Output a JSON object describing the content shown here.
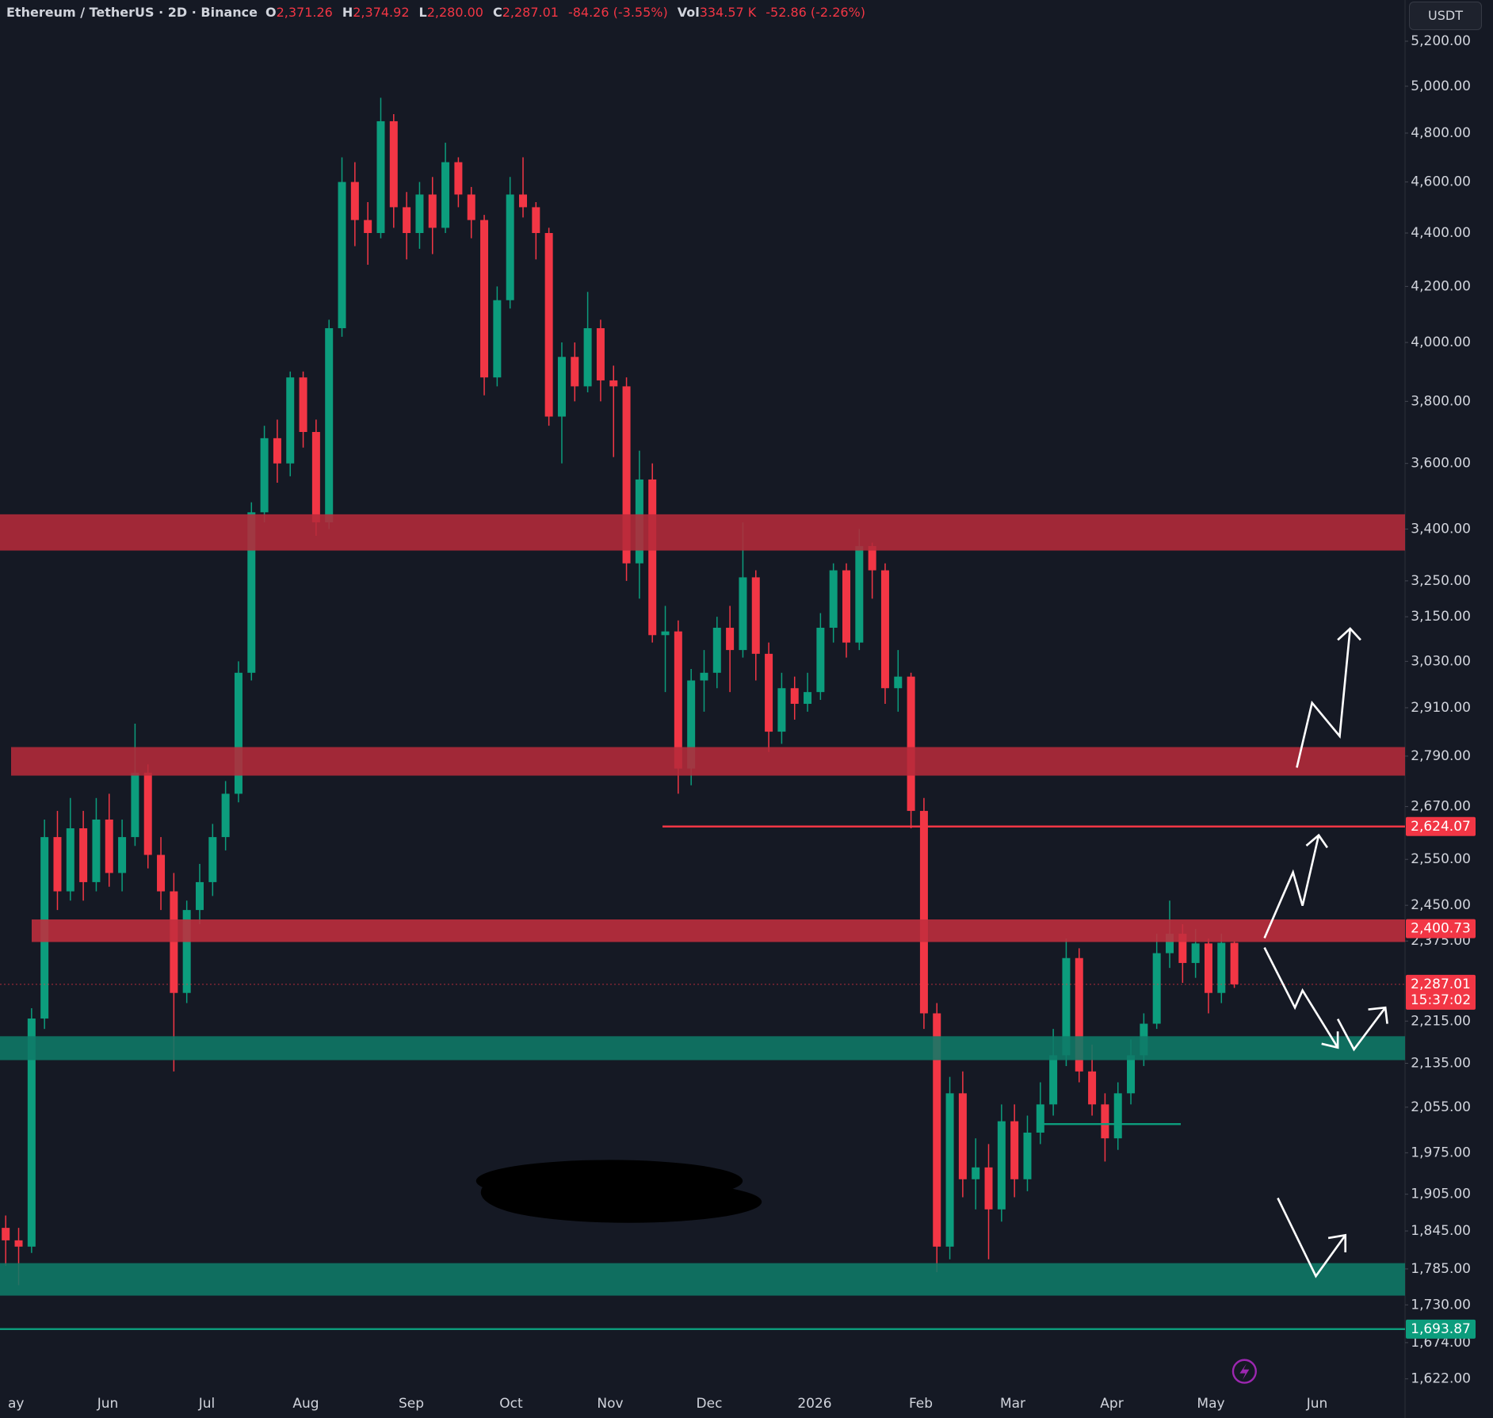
{
  "header": {
    "symbol": "Ethereum / TetherUS · 2D · Binance",
    "fields": [
      {
        "key": "O",
        "value": "2,371.26"
      },
      {
        "key": "H",
        "value": "2,374.92"
      },
      {
        "key": "L",
        "value": "2,280.00"
      },
      {
        "key": "C",
        "value": "2,287.01"
      },
      {
        "key": "",
        "value": "-84.26 (-3.55%)"
      },
      {
        "key": "Vol",
        "value": "334.57 K"
      },
      {
        "key": "",
        "value": "-52.86 (-2.26%)"
      }
    ],
    "currency": "USDT"
  },
  "chart_data": {
    "type": "candlestick",
    "log_scale": true,
    "grid": false,
    "up_color": "#0c9d7d",
    "down_color": "#f23645",
    "categories": [
      "ay",
      "Jun",
      "Jul",
      "Aug",
      "Sep",
      "Oct",
      "Nov",
      "Dec",
      "2026",
      "Feb",
      "Mar",
      "Apr",
      "May",
      "Jun"
    ],
    "ylim": [
      1606,
      5390
    ],
    "yticks": [
      {
        "value": 5200,
        "label": "5,200.00"
      },
      {
        "value": 5000,
        "label": "5,000.00"
      },
      {
        "value": 4800,
        "label": "4,800.00"
      },
      {
        "value": 4600,
        "label": "4,600.00"
      },
      {
        "value": 4400,
        "label": "4,400.00"
      },
      {
        "value": 4200,
        "label": "4,200.00"
      },
      {
        "value": 4000,
        "label": "4,000.00"
      },
      {
        "value": 3800,
        "label": "3,800.00"
      },
      {
        "value": 3600,
        "label": "3,600.00"
      },
      {
        "value": 3400,
        "label": "3,400.00"
      },
      {
        "value": 3250,
        "label": "3,250.00"
      },
      {
        "value": 3150,
        "label": "3,150.00"
      },
      {
        "value": 3030,
        "label": "3,030.00"
      },
      {
        "value": 2910,
        "label": "2,910.00"
      },
      {
        "value": 2790,
        "label": "2,790.00"
      },
      {
        "value": 2670,
        "label": "2,670.00"
      },
      {
        "value": 2550,
        "label": "2,550.00"
      },
      {
        "value": 2450,
        "label": "2,450.00"
      },
      {
        "value": 2375,
        "label": "2,375.00"
      },
      {
        "value": 2215,
        "label": "2,215.00"
      },
      {
        "value": 2135,
        "label": "2,135.00"
      },
      {
        "value": 2055,
        "label": "2,055.00"
      },
      {
        "value": 1975,
        "label": "1,975.00"
      },
      {
        "value": 1905,
        "label": "1,905.00"
      },
      {
        "value": 1845,
        "label": "1,845.00"
      },
      {
        "value": 1785,
        "label": "1,785.00"
      },
      {
        "value": 1730,
        "label": "1,730.00"
      },
      {
        "value": 1674,
        "label": "1,674.00"
      },
      {
        "value": 1622,
        "label": "1,622.00"
      }
    ],
    "candles": [
      [
        1850,
        1870,
        1790,
        1830
      ],
      [
        1830,
        1850,
        1760,
        1820
      ],
      [
        1820,
        2240,
        1810,
        2220
      ],
      [
        2220,
        2640,
        2200,
        2600
      ],
      [
        2600,
        2660,
        2440,
        2480
      ],
      [
        2480,
        2690,
        2460,
        2620
      ],
      [
        2620,
        2660,
        2460,
        2500
      ],
      [
        2500,
        2690,
        2480,
        2640
      ],
      [
        2640,
        2700,
        2490,
        2520
      ],
      [
        2520,
        2640,
        2480,
        2600
      ],
      [
        2600,
        2870,
        2580,
        2750
      ],
      [
        2750,
        2770,
        2530,
        2560
      ],
      [
        2560,
        2600,
        2440,
        2480
      ],
      [
        2480,
        2520,
        2120,
        2270
      ],
      [
        2270,
        2460,
        2250,
        2440
      ],
      [
        2440,
        2540,
        2410,
        2500
      ],
      [
        2500,
        2630,
        2470,
        2600
      ],
      [
        2600,
        2730,
        2570,
        2700
      ],
      [
        2700,
        3030,
        2680,
        3000
      ],
      [
        3000,
        3480,
        2980,
        3450
      ],
      [
        3450,
        3720,
        3420,
        3680
      ],
      [
        3680,
        3740,
        3540,
        3600
      ],
      [
        3600,
        3900,
        3560,
        3880
      ],
      [
        3880,
        3900,
        3650,
        3700
      ],
      [
        3700,
        3740,
        3380,
        3420
      ],
      [
        3420,
        4080,
        3400,
        4050
      ],
      [
        4050,
        4700,
        4020,
        4600
      ],
      [
        4600,
        4680,
        4350,
        4450
      ],
      [
        4450,
        4520,
        4280,
        4400
      ],
      [
        4400,
        4950,
        4380,
        4850
      ],
      [
        4850,
        4880,
        4420,
        4500
      ],
      [
        4500,
        4560,
        4300,
        4400
      ],
      [
        4400,
        4600,
        4340,
        4550
      ],
      [
        4550,
        4620,
        4320,
        4420
      ],
      [
        4420,
        4760,
        4400,
        4680
      ],
      [
        4680,
        4700,
        4500,
        4550
      ],
      [
        4550,
        4580,
        4380,
        4450
      ],
      [
        4450,
        4470,
        3820,
        3880
      ],
      [
        3880,
        4200,
        3850,
        4150
      ],
      [
        4150,
        4620,
        4120,
        4550
      ],
      [
        4550,
        4700,
        4460,
        4500
      ],
      [
        4500,
        4520,
        4300,
        4400
      ],
      [
        4400,
        4420,
        3720,
        3750
      ],
      [
        3750,
        4000,
        3600,
        3950
      ],
      [
        3950,
        4000,
        3800,
        3850
      ],
      [
        3850,
        4180,
        3830,
        4050
      ],
      [
        4050,
        4080,
        3800,
        3870
      ],
      [
        3870,
        3920,
        3620,
        3850
      ],
      [
        3850,
        3880,
        3250,
        3300
      ],
      [
        3300,
        3640,
        3200,
        3550
      ],
      [
        3550,
        3600,
        3080,
        3100
      ],
      [
        3100,
        3180,
        2950,
        3110
      ],
      [
        3110,
        3140,
        2700,
        2760
      ],
      [
        2760,
        3010,
        2720,
        2980
      ],
      [
        2980,
        3060,
        2900,
        3000
      ],
      [
        3000,
        3150,
        2960,
        3120
      ],
      [
        3120,
        3180,
        2950,
        3060
      ],
      [
        3060,
        3420,
        3040,
        3260
      ],
      [
        3260,
        3280,
        2980,
        3050
      ],
      [
        3050,
        3080,
        2800,
        2850
      ],
      [
        2850,
        3000,
        2820,
        2960
      ],
      [
        2960,
        2990,
        2880,
        2920
      ],
      [
        2920,
        3000,
        2900,
        2950
      ],
      [
        2950,
        3160,
        2930,
        3120
      ],
      [
        3120,
        3300,
        3080,
        3280
      ],
      [
        3280,
        3300,
        3040,
        3080
      ],
      [
        3080,
        3400,
        3060,
        3350
      ],
      [
        3350,
        3360,
        3200,
        3280
      ],
      [
        3280,
        3300,
        2920,
        2960
      ],
      [
        2960,
        3060,
        2900,
        2990
      ],
      [
        2990,
        3000,
        2620,
        2660
      ],
      [
        2660,
        2690,
        2200,
        2230
      ],
      [
        2230,
        2250,
        1780,
        1820
      ],
      [
        1820,
        2110,
        1800,
        2080
      ],
      [
        2080,
        2120,
        1900,
        1930
      ],
      [
        1930,
        2000,
        1880,
        1950
      ],
      [
        1950,
        1990,
        1800,
        1880
      ],
      [
        1880,
        2060,
        1860,
        2030
      ],
      [
        2030,
        2060,
        1900,
        1930
      ],
      [
        1930,
        2040,
        1910,
        2010
      ],
      [
        2010,
        2100,
        1990,
        2060
      ],
      [
        2060,
        2200,
        2040,
        2150
      ],
      [
        2150,
        2380,
        2130,
        2340
      ],
      [
        2340,
        2360,
        2100,
        2120
      ],
      [
        2120,
        2170,
        2040,
        2060
      ],
      [
        2060,
        2080,
        1960,
        2000
      ],
      [
        2000,
        2100,
        1980,
        2080
      ],
      [
        2080,
        2180,
        2060,
        2150
      ],
      [
        2150,
        2230,
        2130,
        2210
      ],
      [
        2210,
        2390,
        2200,
        2350
      ],
      [
        2350,
        2460,
        2320,
        2390
      ],
      [
        2390,
        2410,
        2290,
        2330
      ],
      [
        2330,
        2400,
        2300,
        2370
      ],
      [
        2370,
        2380,
        2230,
        2270
      ],
      [
        2270,
        2390,
        2250,
        2371.26
      ],
      [
        2371.26,
        2374.92,
        2280,
        2287.01
      ]
    ],
    "zones": [
      {
        "low": 3337,
        "high": 3444,
        "color": "#b52a3a"
      },
      {
        "low": 2743,
        "high": 2812,
        "color": "#b52a3a"
      },
      {
        "low": 2373,
        "high": 2420,
        "color": "#c22d3e"
      },
      {
        "low": 2141,
        "high": 2186,
        "color": "#0f7a68"
      },
      {
        "low": 1744,
        "high": 1794,
        "color": "#0f7a68"
      }
    ],
    "lines": [
      {
        "value": 2624.07,
        "color": "#f23645"
      },
      {
        "value": 1693.87,
        "color": "#0c9d7d"
      },
      {
        "value": 2025,
        "color": "#0c9d7d"
      }
    ],
    "price_tags": [
      {
        "value": 2624.07,
        "label": "2,624.07",
        "color": "#f23645"
      },
      {
        "value": 2400.73,
        "label": "2,400.73",
        "color": "#f23645"
      },
      {
        "value": 2287.01,
        "label": "2,287.01",
        "countdown": "15:37:02",
        "color": "#f23645"
      },
      {
        "value": 1693.87,
        "label": "1,693.87",
        "color": "#0c9d7d"
      }
    ]
  }
}
